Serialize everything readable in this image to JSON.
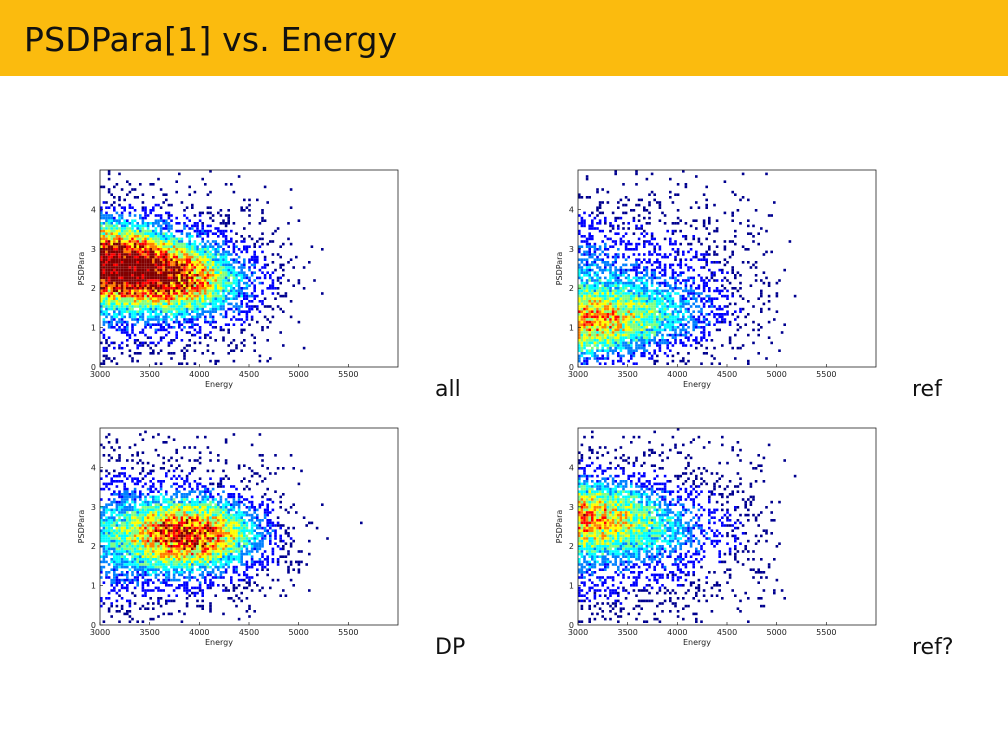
{
  "slide": {
    "title": "PSDPara[1] vs. Energy"
  },
  "panel_labels": [
    "all",
    "ref",
    "DP",
    "ref?"
  ],
  "colormap": [
    "#00008f",
    "#0000ff",
    "#0080ff",
    "#00ffff",
    "#80ff80",
    "#ffff00",
    "#ff8000",
    "#ff0000",
    "#800000"
  ],
  "chart_data": [
    {
      "type": "heatmap",
      "label": "all",
      "xlabel": "Energy",
      "ylabel": "PSDPara",
      "xlim": [
        3000,
        6000
      ],
      "ylim": [
        0,
        5
      ],
      "xticks": [
        "3000",
        "3500",
        "4000",
        "4500",
        "5000",
        "5500"
      ],
      "yticks": [
        "0",
        "1",
        "2",
        "3",
        "4"
      ],
      "density_peaks": [
        {
          "x": 3050,
          "y": 2.7,
          "weight": 1.0
        },
        {
          "x": 3800,
          "y": 2.2,
          "weight": 0.7
        }
      ]
    },
    {
      "type": "heatmap",
      "label": "ref",
      "xlabel": "Energy",
      "ylabel": "PSDPara",
      "xlim": [
        3000,
        6000
      ],
      "ylim": [
        0,
        5
      ],
      "xticks": [
        "3000",
        "3500",
        "4000",
        "4500",
        "5000",
        "5500"
      ],
      "yticks": [
        "0",
        "1",
        "2",
        "3",
        "4"
      ],
      "density_peaks": [
        {
          "x": 3030,
          "y": 1.1,
          "weight": 0.6
        },
        {
          "x": 3800,
          "y": 1.3,
          "weight": 0.25
        }
      ]
    },
    {
      "type": "heatmap",
      "label": "DP",
      "xlabel": "Energy",
      "ylabel": "PSDPara",
      "xlim": [
        3000,
        6000
      ],
      "ylim": [
        0,
        5
      ],
      "xticks": [
        "3000",
        "3500",
        "4000",
        "4500",
        "5000",
        "5500"
      ],
      "yticks": [
        "0",
        "1",
        "2",
        "3",
        "4"
      ],
      "density_peaks": [
        {
          "x": 3900,
          "y": 2.3,
          "weight": 0.9
        }
      ]
    },
    {
      "type": "heatmap",
      "label": "ref?",
      "xlabel": "Energy",
      "ylabel": "PSDPara",
      "xlim": [
        3000,
        6000
      ],
      "ylim": [
        0,
        5
      ],
      "xticks": [
        "3000",
        "3500",
        "4000",
        "4500",
        "5000",
        "5500"
      ],
      "yticks": [
        "0",
        "1",
        "2",
        "3",
        "4"
      ],
      "density_peaks": [
        {
          "x": 3030,
          "y": 2.8,
          "weight": 0.55
        },
        {
          "x": 3800,
          "y": 2.5,
          "weight": 0.2
        }
      ]
    }
  ]
}
